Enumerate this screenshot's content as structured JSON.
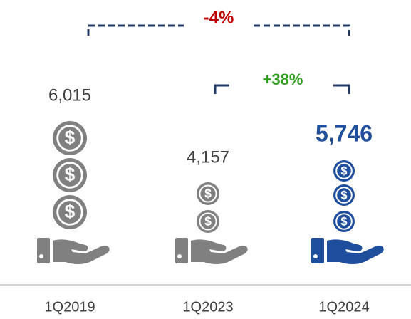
{
  "comparisons": [
    {
      "label": "-4%",
      "color": "#c00000"
    },
    {
      "label": "+38%",
      "color": "#2e9e1f"
    }
  ],
  "coin_symbol": "$",
  "columns": [
    {
      "period": "1Q2019",
      "value": "6,015",
      "coins": 3,
      "color": "#808080"
    },
    {
      "period": "1Q2023",
      "value": "4,157",
      "coins": 2,
      "color": "#808080"
    },
    {
      "period": "1Q2024",
      "value": "5,746",
      "coins": 3,
      "color": "#1f4e9c"
    }
  ]
}
